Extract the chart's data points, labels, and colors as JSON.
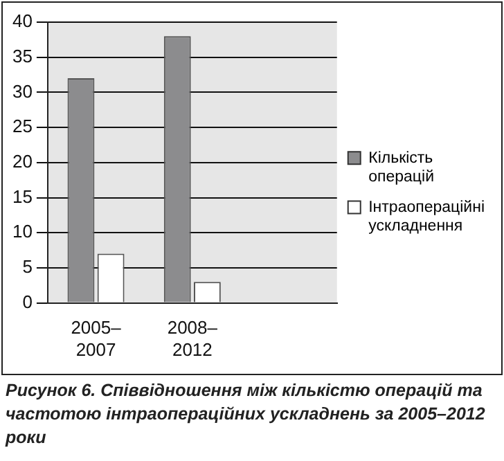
{
  "chart_data": {
    "type": "bar",
    "categories": [
      "2005–2007",
      "2008–2012",
      null
    ],
    "series": [
      {
        "name": "Кількість операцій",
        "color": "#8c8c8e",
        "values": [
          32,
          38,
          null
        ]
      },
      {
        "name": "Інтраопераційні ускладнення",
        "color": "#ffffff",
        "values": [
          7,
          3,
          null
        ]
      }
    ],
    "ylim": [
      0,
      40
    ],
    "yticks": [
      0,
      5,
      10,
      15,
      20,
      25,
      30,
      35,
      40
    ],
    "grid": "y",
    "legend": "right",
    "annotations": [
      "Рисунок 6. Співвідношення між кількістю операцій та частотою інтраопераційних ускладнень за 2005–2012 роки"
    ]
  }
}
